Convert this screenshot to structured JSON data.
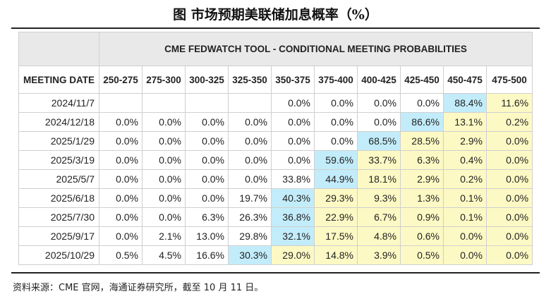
{
  "figure_title": "图  市场预期美联储加息概率（%）",
  "tool_title": "CME FEDWATCH TOOL - CONDITIONAL MEETING PROBABILITIES",
  "meeting_date_header": "MEETING DATE",
  "columns": [
    "250-275",
    "275-300",
    "300-325",
    "325-350",
    "350-375",
    "375-400",
    "400-425",
    "425-450",
    "450-475",
    "475-500"
  ],
  "rows": [
    {
      "date": "2024/11/7",
      "values": [
        "",
        "",
        "",
        "",
        "0.0%",
        "0.0%",
        "0.0%",
        "0.0%",
        "88.4%",
        "11.6%"
      ],
      "highlight": 8
    },
    {
      "date": "2024/12/18",
      "values": [
        "0.0%",
        "0.0%",
        "0.0%",
        "0.0%",
        "0.0%",
        "0.0%",
        "0.0%",
        "86.6%",
        "13.1%",
        "0.2%"
      ],
      "highlight": 7
    },
    {
      "date": "2025/1/29",
      "values": [
        "0.0%",
        "0.0%",
        "0.0%",
        "0.0%",
        "0.0%",
        "0.0%",
        "68.5%",
        "28.5%",
        "2.9%",
        "0.0%"
      ],
      "highlight": 6
    },
    {
      "date": "2025/3/19",
      "values": [
        "0.0%",
        "0.0%",
        "0.0%",
        "0.0%",
        "0.0%",
        "59.6%",
        "33.7%",
        "6.3%",
        "0.4%",
        "0.0%"
      ],
      "highlight": 5
    },
    {
      "date": "2025/5/7",
      "values": [
        "0.0%",
        "0.0%",
        "0.0%",
        "0.0%",
        "33.8%",
        "44.9%",
        "18.1%",
        "2.9%",
        "0.2%",
        "0.0%"
      ],
      "highlight": 5
    },
    {
      "date": "2025/6/18",
      "values": [
        "0.0%",
        "0.0%",
        "0.0%",
        "19.7%",
        "40.3%",
        "29.3%",
        "9.3%",
        "1.3%",
        "0.1%",
        "0.0%"
      ],
      "highlight": 4
    },
    {
      "date": "2025/7/30",
      "values": [
        "0.0%",
        "0.0%",
        "6.3%",
        "26.3%",
        "36.8%",
        "22.9%",
        "6.7%",
        "0.9%",
        "0.1%",
        "0.0%"
      ],
      "highlight": 4
    },
    {
      "date": "2025/9/17",
      "values": [
        "0.0%",
        "2.1%",
        "13.0%",
        "29.8%",
        "32.1%",
        "17.5%",
        "4.8%",
        "0.6%",
        "0.0%",
        "0.0%"
      ],
      "highlight": 4
    },
    {
      "date": "2025/10/29",
      "values": [
        "0.5%",
        "4.5%",
        "16.6%",
        "30.3%",
        "29.0%",
        "14.8%",
        "3.9%",
        "0.5%",
        "0.0%",
        "0.0%"
      ],
      "highlight": 3
    }
  ],
  "source_note": "资料来源：CME 官网，海通证券研究所，截至 10 月 11 日。",
  "colors": {
    "highlight_blue": "#c2ecfa",
    "shade_yellow": "#fdf9c4"
  }
}
